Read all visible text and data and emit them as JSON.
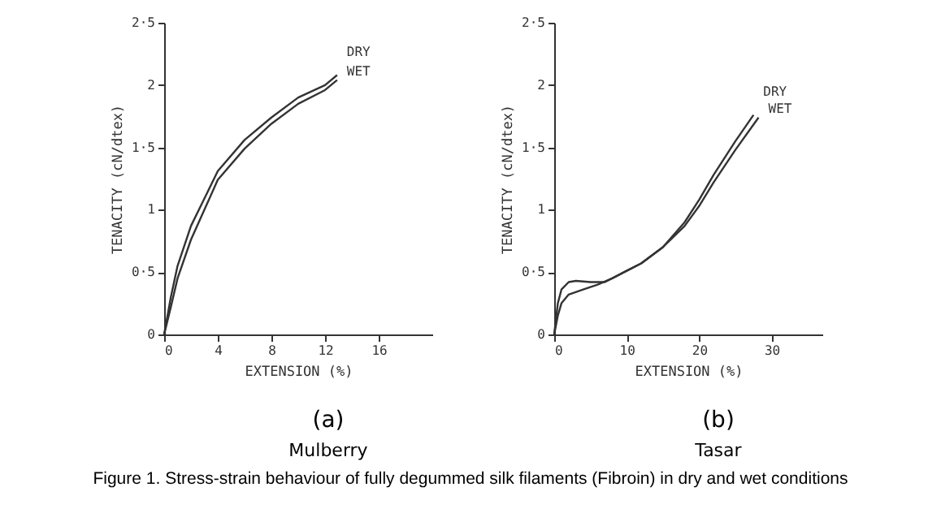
{
  "chart_data": [
    {
      "type": "line",
      "xlabel": "EXTENSION (%)",
      "ylabel": "TENACITY (cN/dtex)",
      "annotations": [
        "(a)",
        "Mulberry"
      ],
      "xlim": [
        0,
        20
      ],
      "xticks": [
        0,
        4,
        8,
        12,
        16
      ],
      "ylim": [
        0,
        2.5
      ],
      "yticks": [
        0,
        {
          "value": 0.5,
          "label": "0·5"
        },
        1,
        {
          "value": 1.5,
          "label": "1·5"
        },
        2,
        {
          "value": 2.5,
          "label": "2·5"
        }
      ],
      "grid": false,
      "legend": false,
      "series": [
        {
          "name": "DRY",
          "color": "#333333",
          "x": [
            0,
            0.5,
            1,
            2,
            4,
            6,
            8,
            10,
            12,
            12.9
          ],
          "values": [
            0,
            0.3,
            0.55,
            0.87,
            1.31,
            1.56,
            1.74,
            1.9,
            2.0,
            2.08
          ]
        },
        {
          "name": "WET",
          "color": "#333333",
          "x": [
            0,
            0.5,
            1,
            2,
            4,
            6,
            8,
            10,
            12,
            12.9
          ],
          "values": [
            0,
            0.22,
            0.45,
            0.76,
            1.24,
            1.49,
            1.69,
            1.85,
            1.96,
            2.04
          ]
        }
      ]
    },
    {
      "type": "line",
      "xlabel": "EXTENSION (%)",
      "ylabel": "TENACITY (cN/dtex)",
      "annotations": [
        "(b)",
        "Tasar",
        "Figure 1. Stress-strain behaviour of fully degummed silk filaments (Fibroin) in dry and wet conditions"
      ],
      "xlim": [
        0,
        37
      ],
      "xticks": [
        0,
        10,
        20,
        30
      ],
      "ylim": [
        0,
        2.5
      ],
      "yticks": [
        0,
        {
          "value": 0.5,
          "label": "0·5"
        },
        1,
        {
          "value": 1.5,
          "label": "1·5"
        },
        2,
        {
          "value": 2.5,
          "label": "2·5"
        }
      ],
      "grid": false,
      "legend": false,
      "series": [
        {
          "name": "DRY",
          "color": "#333333",
          "x": [
            0,
            0.5,
            1,
            2,
            3,
            5,
            7,
            10,
            12,
            15,
            18,
            20,
            22,
            25,
            27.5
          ],
          "values": [
            0,
            0.25,
            0.36,
            0.42,
            0.43,
            0.42,
            0.42,
            0.51,
            0.57,
            0.7,
            0.9,
            1.08,
            1.28,
            1.55,
            1.76
          ]
        },
        {
          "name": "WET",
          "color": "#333333",
          "x": [
            0,
            0.5,
            1,
            2,
            4,
            6,
            8,
            10,
            12,
            15,
            18,
            20,
            22,
            25,
            28.2
          ],
          "values": [
            0,
            0.15,
            0.25,
            0.32,
            0.36,
            0.4,
            0.45,
            0.51,
            0.57,
            0.7,
            0.87,
            1.03,
            1.22,
            1.48,
            1.74
          ]
        }
      ]
    }
  ]
}
